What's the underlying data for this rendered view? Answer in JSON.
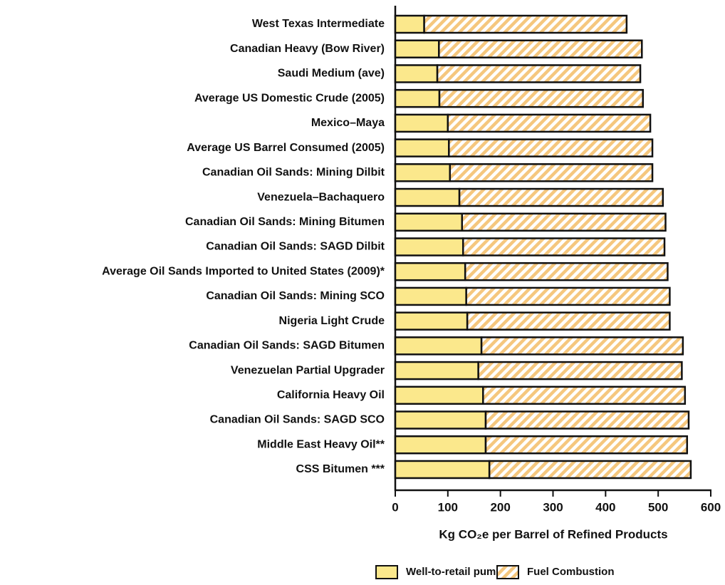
{
  "chart_data": {
    "type": "stacked-barh",
    "categories": [
      "West Texas Intermediate",
      "Canadian Heavy (Bow River)",
      "Saudi Medium (ave)",
      "Average US Domestic Crude (2005)",
      "Mexico–Maya",
      "Average US Barrel Consumed (2005)",
      "Canadian Oil Sands: Mining Dilbit",
      "Venezuela–Bachaquero",
      "Canadian Oil Sands: Mining Bitumen",
      "Canadian Oil Sands: SAGD Dilbit",
      "Average Oil Sands Imported to United States (2009)*",
      "Canadian Oil Sands: Mining SCO",
      "Nigeria Light Crude",
      "Canadian Oil Sands: SAGD Bitumen",
      "Venezuelan Partial Upgrader",
      "California Heavy Oil",
      "Canadian Oil Sands: SAGD SCO",
      "Middle East Heavy Oil**",
      "CSS  Bitumen ***"
    ],
    "series": [
      {
        "name": "Well-to-retail pump",
        "color": "#fbe88c",
        "pattern": "solid",
        "values": [
          55,
          83,
          80,
          84,
          100,
          102,
          104,
          122,
          127,
          129,
          133,
          135,
          137,
          164,
          158,
          167,
          172,
          172,
          179
        ]
      },
      {
        "name": "Fuel Combustion",
        "color": "#f5c77e",
        "pattern": "hatch",
        "values": [
          385,
          386,
          386,
          387,
          385,
          387,
          385,
          387,
          387,
          383,
          385,
          387,
          385,
          383,
          387,
          384,
          386,
          383,
          383
        ]
      }
    ],
    "xlabel": "Kg CO₂e per Barrel of Refined Products",
    "xlim": [
      0,
      600
    ],
    "xticks": [
      0,
      100,
      200,
      300,
      400,
      500,
      600
    ],
    "grid": false,
    "legend": "bottom-right"
  }
}
